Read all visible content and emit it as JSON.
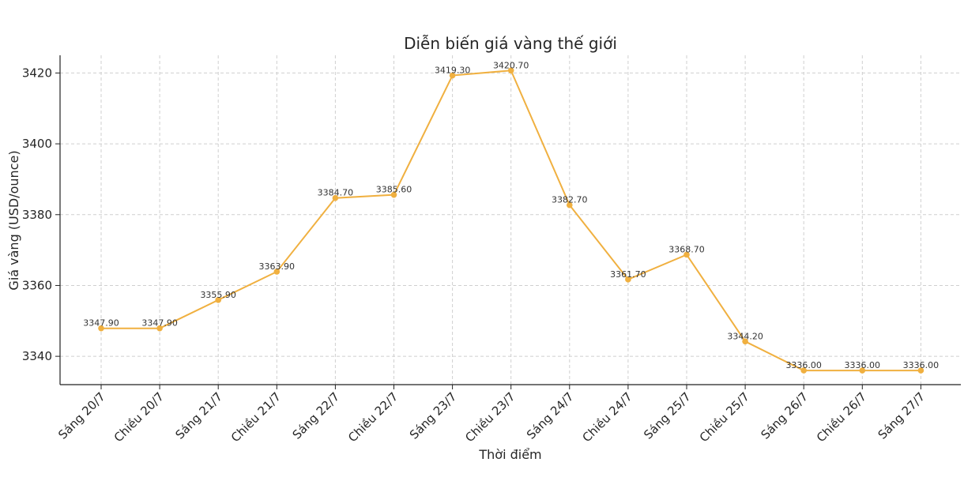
{
  "chart_data": {
    "type": "line",
    "title": "Diễn biến giá vàng thế giới",
    "xlabel": "Thời điểm",
    "ylabel": "Giá vàng (USD/ounce)",
    "categories": [
      "Sáng 20/7",
      "Chiều 20/7",
      "Sáng 21/7",
      "Chiều 21/7",
      "Sáng 22/7",
      "Chiều 22/7",
      "Sáng 23/7",
      "Chiều 23/7",
      "Sáng 24/7",
      "Chiều 24/7",
      "Sáng 25/7",
      "Chiều 25/7",
      "Sáng 26/7",
      "Chiều 26/7",
      "Sáng 27/7"
    ],
    "values": [
      3347.9,
      3347.9,
      3355.9,
      3363.9,
      3384.7,
      3385.6,
      3419.3,
      3420.7,
      3382.7,
      3361.7,
      3368.7,
      3344.2,
      3336.0,
      3336.0,
      3336.0
    ],
    "data_labels": [
      "3347.90",
      "3347.90",
      "3355.90",
      "3363.90",
      "3384.70",
      "3385.60",
      "3419.30",
      "3420.70",
      "3382.70",
      "3361.70",
      "3368.70",
      "3344.20",
      "3336.00",
      "3336.00",
      "3336.00"
    ],
    "yticks": [
      3340,
      3360,
      3380,
      3400,
      3420
    ],
    "ylim": [
      3332,
      3425
    ],
    "grid": true,
    "line_color": "#f0b040"
  }
}
